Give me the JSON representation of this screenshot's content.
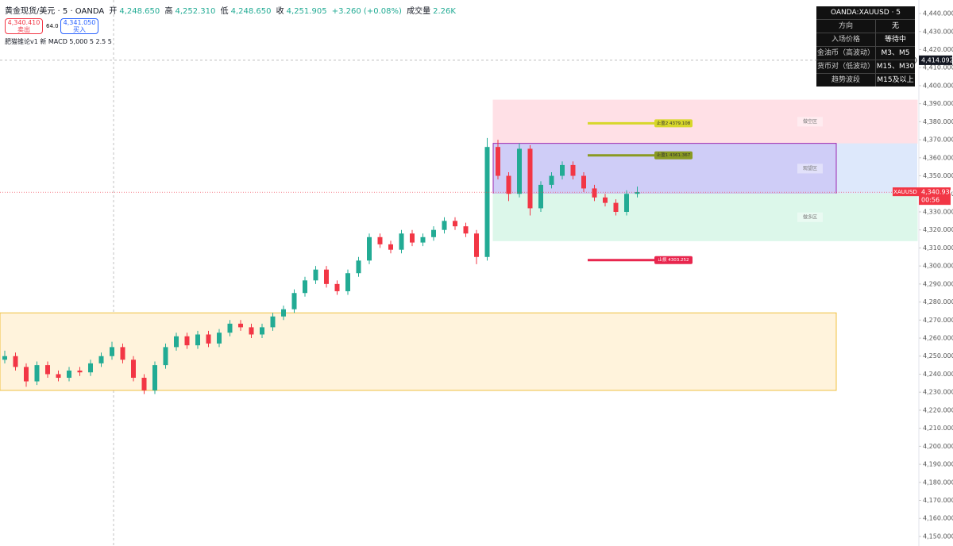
{
  "header": {
    "symbol": "黄金现货/美元 · 5 · OANDA",
    "ohlc": [
      {
        "label": "开",
        "value": "4,248.650"
      },
      {
        "label": "高",
        "value": "4,252.310"
      },
      {
        "label": "低",
        "value": "4,248.650"
      },
      {
        "label": "收",
        "value": "4,251.905"
      }
    ],
    "change": "+3.260 (+0.08%)",
    "volume_label": "成交量",
    "volume": "2.26K",
    "sell_price": "4,340.410",
    "sell_label": "卖出",
    "spread": "64.0",
    "buy_price": "4,341.050",
    "buy_label": "买入",
    "indicator": "肥猫锥论v1 新 MACD 5,000 5 2.5 5"
  },
  "info_table": {
    "title": "OANDA:XAUUSD · 5",
    "rows": [
      [
        "方向",
        "无"
      ],
      [
        "入场价格",
        "等待中"
      ],
      [
        "金油币（高波动）",
        "M3、M5"
      ],
      [
        "货币对（低波动）",
        "M15、M30"
      ],
      [
        "趋势波段",
        "M15及以上"
      ]
    ]
  },
  "chart_data": {
    "type": "candlestick",
    "up_color": "#22ab94",
    "down_color": "#f23645",
    "ylim": [
      4144.7,
      4447.5
    ],
    "yticks": [
      {
        "value": 4150,
        "label": "4,150.000"
      },
      {
        "value": 4160,
        "label": "4,160.000"
      },
      {
        "value": 4170,
        "label": "4,170.000"
      },
      {
        "value": 4180,
        "label": "4,180.000"
      },
      {
        "value": 4190,
        "label": "4,190.000"
      },
      {
        "value": 4200,
        "label": "4,200.000"
      },
      {
        "value": 4210,
        "label": "4,210.000"
      },
      {
        "value": 4220,
        "label": "4,220.000"
      },
      {
        "value": 4230,
        "label": "4,230.000"
      },
      {
        "value": 4240,
        "label": "4,240.000"
      },
      {
        "value": 4250,
        "label": "4,250.000"
      },
      {
        "value": 4260,
        "label": "4,260.000"
      },
      {
        "value": 4270,
        "label": "4,270.000"
      },
      {
        "value": 4280,
        "label": "4,280.000"
      },
      {
        "value": 4290,
        "label": "4,290.000"
      },
      {
        "value": 4300,
        "label": "4,300.000"
      },
      {
        "value": 4310,
        "label": "4,310.000"
      },
      {
        "value": 4320,
        "label": "4,320.000"
      },
      {
        "value": 4330,
        "label": "4,330.000"
      },
      {
        "value": 4340,
        "label": "4,340.000"
      },
      {
        "value": 4350,
        "label": "4,350.000"
      },
      {
        "value": 4360,
        "label": "4,360.000"
      },
      {
        "value": 4370,
        "label": "4,370.000"
      },
      {
        "value": 4380,
        "label": "4,380.000"
      },
      {
        "value": 4390,
        "label": "4,390.000"
      },
      {
        "value": 4400,
        "label": "4,400.000"
      },
      {
        "value": 4410,
        "label": "4,410.000"
      },
      {
        "value": 4420,
        "label": "4,420.000"
      },
      {
        "value": 4430,
        "label": "4,430.000"
      },
      {
        "value": 4440,
        "label": "4,440.000"
      }
    ],
    "candles": [
      [
        4248,
        4253,
        4246,
        4250
      ],
      [
        4250,
        4252,
        4242,
        4244
      ],
      [
        4244,
        4246,
        4233,
        4236
      ],
      [
        4236,
        4247,
        4234,
        4245
      ],
      [
        4245,
        4247,
        4238,
        4240
      ],
      [
        4240,
        4242,
        4236,
        4238
      ],
      [
        4238,
        4244,
        4236,
        4242
      ],
      [
        4242,
        4244,
        4239,
        4241
      ],
      [
        4241,
        4248,
        4239,
        4246
      ],
      [
        4246,
        4252,
        4244,
        4250
      ],
      [
        4250,
        4258,
        4248,
        4255
      ],
      [
        4255,
        4257,
        4246,
        4248
      ],
      [
        4248,
        4250,
        4236,
        4238
      ],
      [
        4238,
        4240,
        4229,
        4231
      ],
      [
        4231,
        4247,
        4229,
        4245
      ],
      [
        4245,
        4257,
        4243,
        4255
      ],
      [
        4255,
        4263,
        4253,
        4261
      ],
      [
        4261,
        4263,
        4254,
        4256
      ],
      [
        4256,
        4264,
        4254,
        4262
      ],
      [
        4262,
        4264,
        4255,
        4257
      ],
      [
        4257,
        4265,
        4255,
        4263
      ],
      [
        4263,
        4270,
        4261,
        4268
      ],
      [
        4268,
        4270,
        4264,
        4266
      ],
      [
        4266,
        4268,
        4260,
        4262
      ],
      [
        4262,
        4268,
        4260,
        4266
      ],
      [
        4266,
        4274,
        4264,
        4272
      ],
      [
        4272,
        4278,
        4270,
        4276
      ],
      [
        4276,
        4287,
        4274,
        4285
      ],
      [
        4285,
        4294,
        4283,
        4292
      ],
      [
        4292,
        4300,
        4290,
        4298
      ],
      [
        4298,
        4300,
        4288,
        4290
      ],
      [
        4290,
        4292,
        4284,
        4286
      ],
      [
        4286,
        4298,
        4284,
        4296
      ],
      [
        4296,
        4305,
        4294,
        4303
      ],
      [
        4303,
        4318,
        4301,
        4316
      ],
      [
        4316,
        4318,
        4310,
        4312
      ],
      [
        4312,
        4314,
        4307,
        4309
      ],
      [
        4309,
        4320,
        4307,
        4318
      ],
      [
        4318,
        4320,
        4311,
        4313
      ],
      [
        4313,
        4318,
        4311,
        4316
      ],
      [
        4316,
        4322,
        4314,
        4320
      ],
      [
        4320,
        4327,
        4318,
        4325
      ],
      [
        4325,
        4327,
        4320,
        4322
      ],
      [
        4322,
        4324,
        4316,
        4318
      ],
      [
        4318,
        4320,
        4301,
        4305
      ],
      [
        4305,
        4371,
        4303,
        4366
      ],
      [
        4366,
        4370,
        4348,
        4350
      ],
      [
        4350,
        4352,
        4336,
        4340
      ],
      [
        4340,
        4368,
        4338,
        4365
      ],
      [
        4365,
        4367,
        4328,
        4332
      ],
      [
        4332,
        4347,
        4330,
        4345
      ],
      [
        4345,
        4352,
        4343,
        4350
      ],
      [
        4350,
        4358,
        4348,
        4356
      ],
      [
        4356,
        4358,
        4348,
        4350
      ],
      [
        4350,
        4352,
        4341,
        4343
      ],
      [
        4343,
        4345,
        4336,
        4338
      ],
      [
        4338,
        4340,
        4333,
        4335
      ],
      [
        4335,
        4337,
        4328,
        4330
      ],
      [
        4330,
        4342,
        4328,
        4340
      ],
      [
        4340,
        4344,
        4338,
        4341
      ]
    ],
    "zones": [
      {
        "ylim": [
          4231,
          4274
        ],
        "color": "#fff3dc",
        "border": "#f0c040"
      },
      {
        "label": "做空区",
        "ylim": [
          4368,
          4392
        ],
        "color": "#ffe0e6",
        "border": "#ffe0e6"
      },
      {
        "label": "观望区",
        "ylim": [
          4340,
          4368
        ],
        "color": "#cfcdf7",
        "border": "#9c27b0"
      },
      {
        "label": "做多区",
        "ylim": [
          4314,
          4340
        ],
        "color": "#dcf7ea",
        "border": "#dcf7ea"
      }
    ],
    "levels": [
      {
        "value": 4379.108,
        "label": "止盈2 4379.108",
        "color": "#d7d72a"
      },
      {
        "value": 4361.367,
        "label": "止盈1 4361.367",
        "color": "#8a9a22"
      },
      {
        "value": 4303.252,
        "label": "止损 4303.252",
        "color": "#e8264e"
      }
    ],
    "last_price": {
      "value": 4340.93,
      "label": "4,340.930",
      "symbol": "XAUUSD",
      "countdown": "00:56",
      "color": "#f23645"
    },
    "crosshair": {
      "value": 4414.092,
      "label": "4,414.092"
    }
  }
}
